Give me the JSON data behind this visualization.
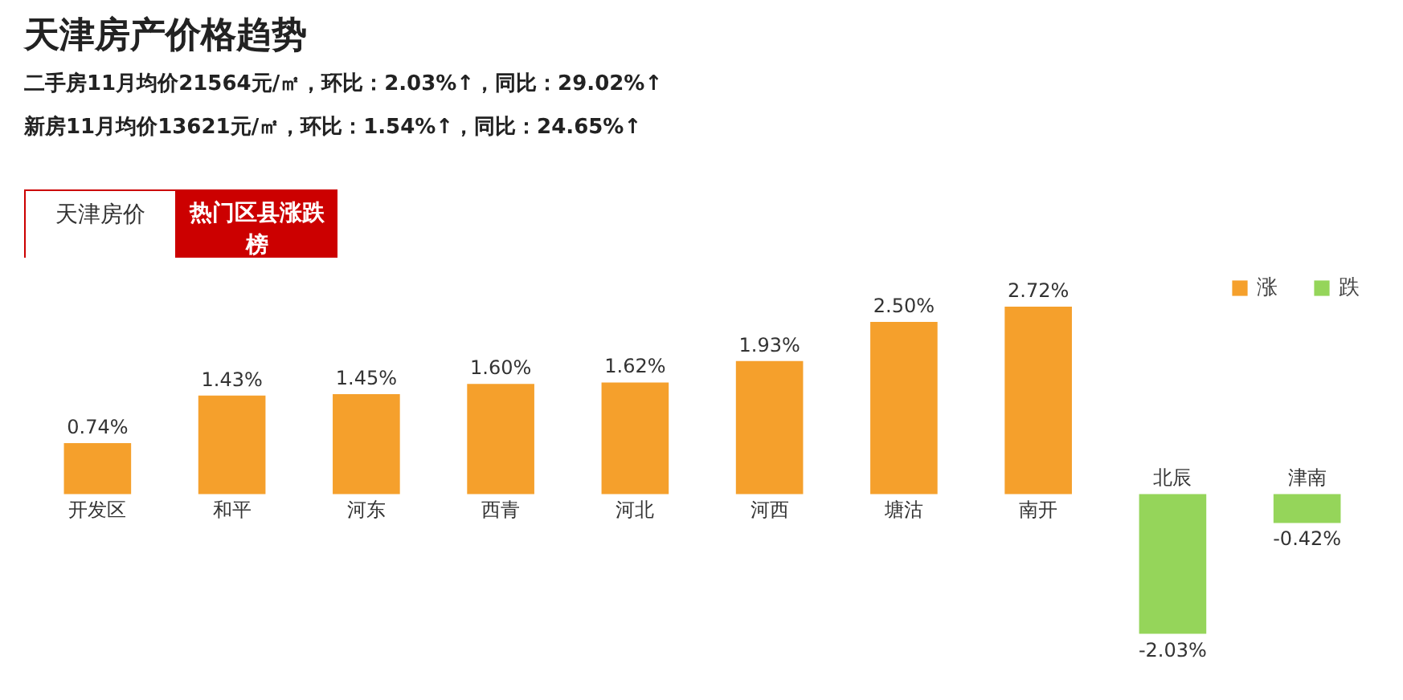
{
  "chart_data": {
    "type": "bar",
    "title": "天津房产价格趋势",
    "subtitle": "二手房11月均价21564元/㎡，环比：2.03%↑，同比：29.02%↑\n新房11月均价13621元/㎡，环比：1.54%↑，同比：24.65%↑",
    "annotations": [
      "天津房价",
      "热门区县涨跌榜"
    ],
    "categories": [
      "开发区",
      "和平",
      "河东",
      "西青",
      "河北",
      "河西",
      "塘沽",
      "南开",
      "北辰",
      "津南"
    ],
    "series": [
      {
        "name": "涨",
        "color": "#f5a02c",
        "values": [
          0.74,
          1.43,
          1.45,
          1.6,
          1.62,
          1.93,
          2.5,
          2.72,
          null,
          null
        ],
        "value_labels": [
          "0.74%",
          "1.43%",
          "1.45%",
          "1.60%",
          "1.62%",
          "1.93%",
          "2.50%",
          "2.72%",
          null,
          null
        ]
      },
      {
        "name": "跌",
        "color": "#95d55a",
        "values": [
          null,
          null,
          null,
          null,
          null,
          null,
          null,
          null,
          -2.03,
          -0.42
        ],
        "value_labels": [
          null,
          null,
          null,
          null,
          null,
          null,
          null,
          null,
          "-2.03%",
          "-0.42%"
        ]
      }
    ],
    "legend": "top right"
  }
}
